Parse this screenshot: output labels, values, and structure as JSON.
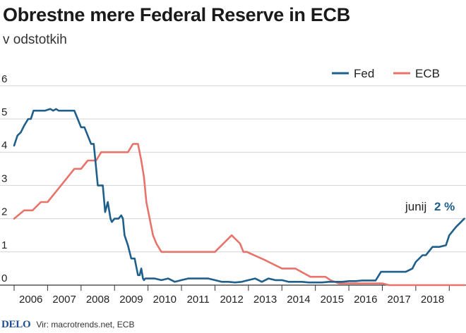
{
  "header": {
    "title": "Obrestne mere Federal Reserve in ECB",
    "subtitle": "v odstotkih"
  },
  "footer": {
    "logo": "DELO",
    "source": "Vir: macrotrends.net, ECB"
  },
  "annotation": {
    "label": "junij",
    "value": "2 %"
  },
  "colors": {
    "fed": "#1f5f8b",
    "ecb": "#e8736a",
    "grid": "#d4d4d4",
    "axis": "#333333"
  },
  "chart_data": {
    "type": "line",
    "title": "Obrestne mere Federal Reserve in ECB",
    "subtitle": "v odstotkih",
    "xlabel": "",
    "ylabel": "",
    "ylim": [
      0,
      6
    ],
    "xlim": [
      2005.0,
      2018.5
    ],
    "grid": true,
    "legend_position": "top-right",
    "y_ticks": [
      "0",
      "1",
      "2",
      "3",
      "4",
      "5",
      "6"
    ],
    "x_ticks": [
      "2006",
      "2007",
      "2008",
      "2009",
      "2010",
      "2011",
      "2012",
      "2013",
      "2014",
      "2015",
      "2016",
      "2017",
      "2018"
    ],
    "series": [
      {
        "name": "Fed",
        "x": [
          2005.0,
          2005.1,
          2005.2,
          2005.3,
          2005.42,
          2005.5,
          2005.58,
          2005.7,
          2005.83,
          2005.92,
          2006.08,
          2006.17,
          2006.25,
          2006.33,
          2006.42,
          2006.5,
          2006.6,
          2006.7,
          2006.8,
          2006.9,
          2007.0,
          2007.1,
          2007.2,
          2007.3,
          2007.38,
          2007.5,
          2007.58,
          2007.65,
          2007.72,
          2007.8,
          2007.88,
          2007.92,
          2008.0,
          2008.05,
          2008.12,
          2008.2,
          2008.25,
          2008.3,
          2008.4,
          2008.5,
          2008.6,
          2008.7,
          2008.75,
          2008.8,
          2008.85,
          2008.88,
          2008.92,
          2008.96,
          2009.0,
          2009.2,
          2009.4,
          2009.6,
          2009.8,
          2010.0,
          2010.2,
          2010.4,
          2010.6,
          2010.8,
          2011.0,
          2011.2,
          2011.4,
          2011.6,
          2011.8,
          2012.0,
          2012.2,
          2012.4,
          2012.6,
          2012.8,
          2013.0,
          2013.2,
          2013.4,
          2013.6,
          2013.8,
          2014.0,
          2014.2,
          2014.4,
          2014.6,
          2014.8,
          2015.0,
          2015.2,
          2015.4,
          2015.6,
          2015.8,
          2015.96,
          2016.1,
          2016.3,
          2016.5,
          2016.7,
          2016.9,
          2017.0,
          2017.2,
          2017.3,
          2017.5,
          2017.7,
          2017.9,
          2018.0,
          2018.2,
          2018.45
        ],
        "values": [
          4.2,
          4.5,
          4.6,
          4.8,
          5.0,
          5.0,
          5.25,
          5.25,
          5.25,
          5.25,
          5.3,
          5.25,
          5.3,
          5.25,
          5.25,
          5.25,
          5.25,
          5.25,
          5.25,
          5.0,
          4.75,
          4.75,
          4.5,
          4.25,
          4.25,
          3.0,
          3.0,
          3.0,
          2.2,
          2.5,
          2.0,
          1.9,
          2.0,
          2.0,
          2.0,
          2.1,
          2.0,
          1.5,
          1.2,
          0.8,
          0.8,
          0.3,
          0.3,
          0.5,
          0.2,
          0.15,
          0.2,
          0.2,
          0.2,
          0.2,
          0.15,
          0.2,
          0.1,
          0.15,
          0.2,
          0.2,
          0.2,
          0.2,
          0.15,
          0.1,
          0.1,
          0.08,
          0.1,
          0.15,
          0.2,
          0.1,
          0.2,
          0.15,
          0.15,
          0.1,
          0.1,
          0.1,
          0.08,
          0.08,
          0.08,
          0.1,
          0.1,
          0.1,
          0.12,
          0.12,
          0.14,
          0.14,
          0.14,
          0.4,
          0.4,
          0.4,
          0.4,
          0.4,
          0.5,
          0.7,
          0.9,
          0.9,
          1.15,
          1.15,
          1.2,
          1.5,
          1.75,
          2.0
        ]
      },
      {
        "name": "ECB",
        "x": [
          2005.0,
          2005.3,
          2005.55,
          2005.8,
          2006.0,
          2006.2,
          2006.4,
          2006.6,
          2006.8,
          2007.0,
          2007.2,
          2007.45,
          2007.6,
          2007.8,
          2008.0,
          2008.2,
          2008.4,
          2008.55,
          2008.7,
          2008.8,
          2008.88,
          2008.95,
          2009.05,
          2009.15,
          2009.25,
          2009.4,
          2009.6,
          2010.0,
          2010.5,
          2011.0,
          2011.25,
          2011.5,
          2011.75,
          2011.85,
          2011.95,
          2012.5,
          2013.0,
          2013.4,
          2013.85,
          2014.3,
          2014.45,
          2014.7,
          2015.0,
          2015.5,
          2016.0,
          2016.2,
          2017.0,
          2018.0,
          2018.45
        ],
        "values": [
          2.0,
          2.25,
          2.25,
          2.5,
          2.5,
          2.75,
          3.0,
          3.25,
          3.5,
          3.5,
          3.75,
          3.75,
          4.0,
          4.0,
          4.0,
          4.0,
          4.0,
          4.25,
          4.25,
          3.75,
          3.25,
          2.5,
          2.0,
          1.5,
          1.25,
          1.0,
          1.0,
          1.0,
          1.0,
          1.0,
          1.25,
          1.5,
          1.25,
          1.0,
          1.0,
          0.75,
          0.5,
          0.5,
          0.25,
          0.25,
          0.15,
          0.05,
          0.05,
          0.05,
          0.05,
          0.0,
          0.0,
          0.0,
          0.0
        ]
      }
    ]
  }
}
